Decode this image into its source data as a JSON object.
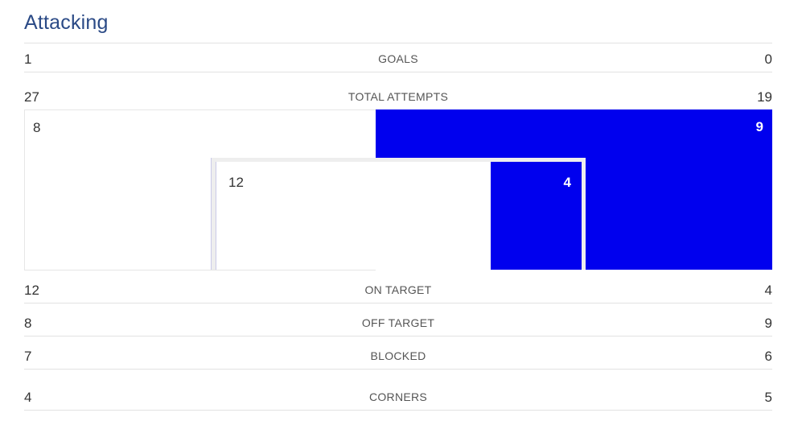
{
  "section": {
    "title": "Attacking"
  },
  "stats": {
    "goals": {
      "label": "GOALS",
      "home": "1",
      "away": "0"
    },
    "total_attempts": {
      "label": "TOTAL ATTEMPTS",
      "home": "27",
      "away": "19"
    },
    "on_target": {
      "label": "ON TARGET",
      "home": "12",
      "away": "4"
    },
    "off_target": {
      "label": "OFF TARGET",
      "home": "8",
      "away": "9"
    },
    "blocked": {
      "label": "BLOCKED",
      "home": "7",
      "away": "6"
    },
    "corners": {
      "label": "CORNERS",
      "home": "4",
      "away": "5"
    }
  },
  "goal_frame": {
    "off_target_home": "8",
    "off_target_away": "9",
    "on_target_home": "12",
    "on_target_away": "4"
  },
  "colors": {
    "title": "#2b4a86",
    "away_fill": "#0000ee",
    "frame": "#eeeeee"
  }
}
